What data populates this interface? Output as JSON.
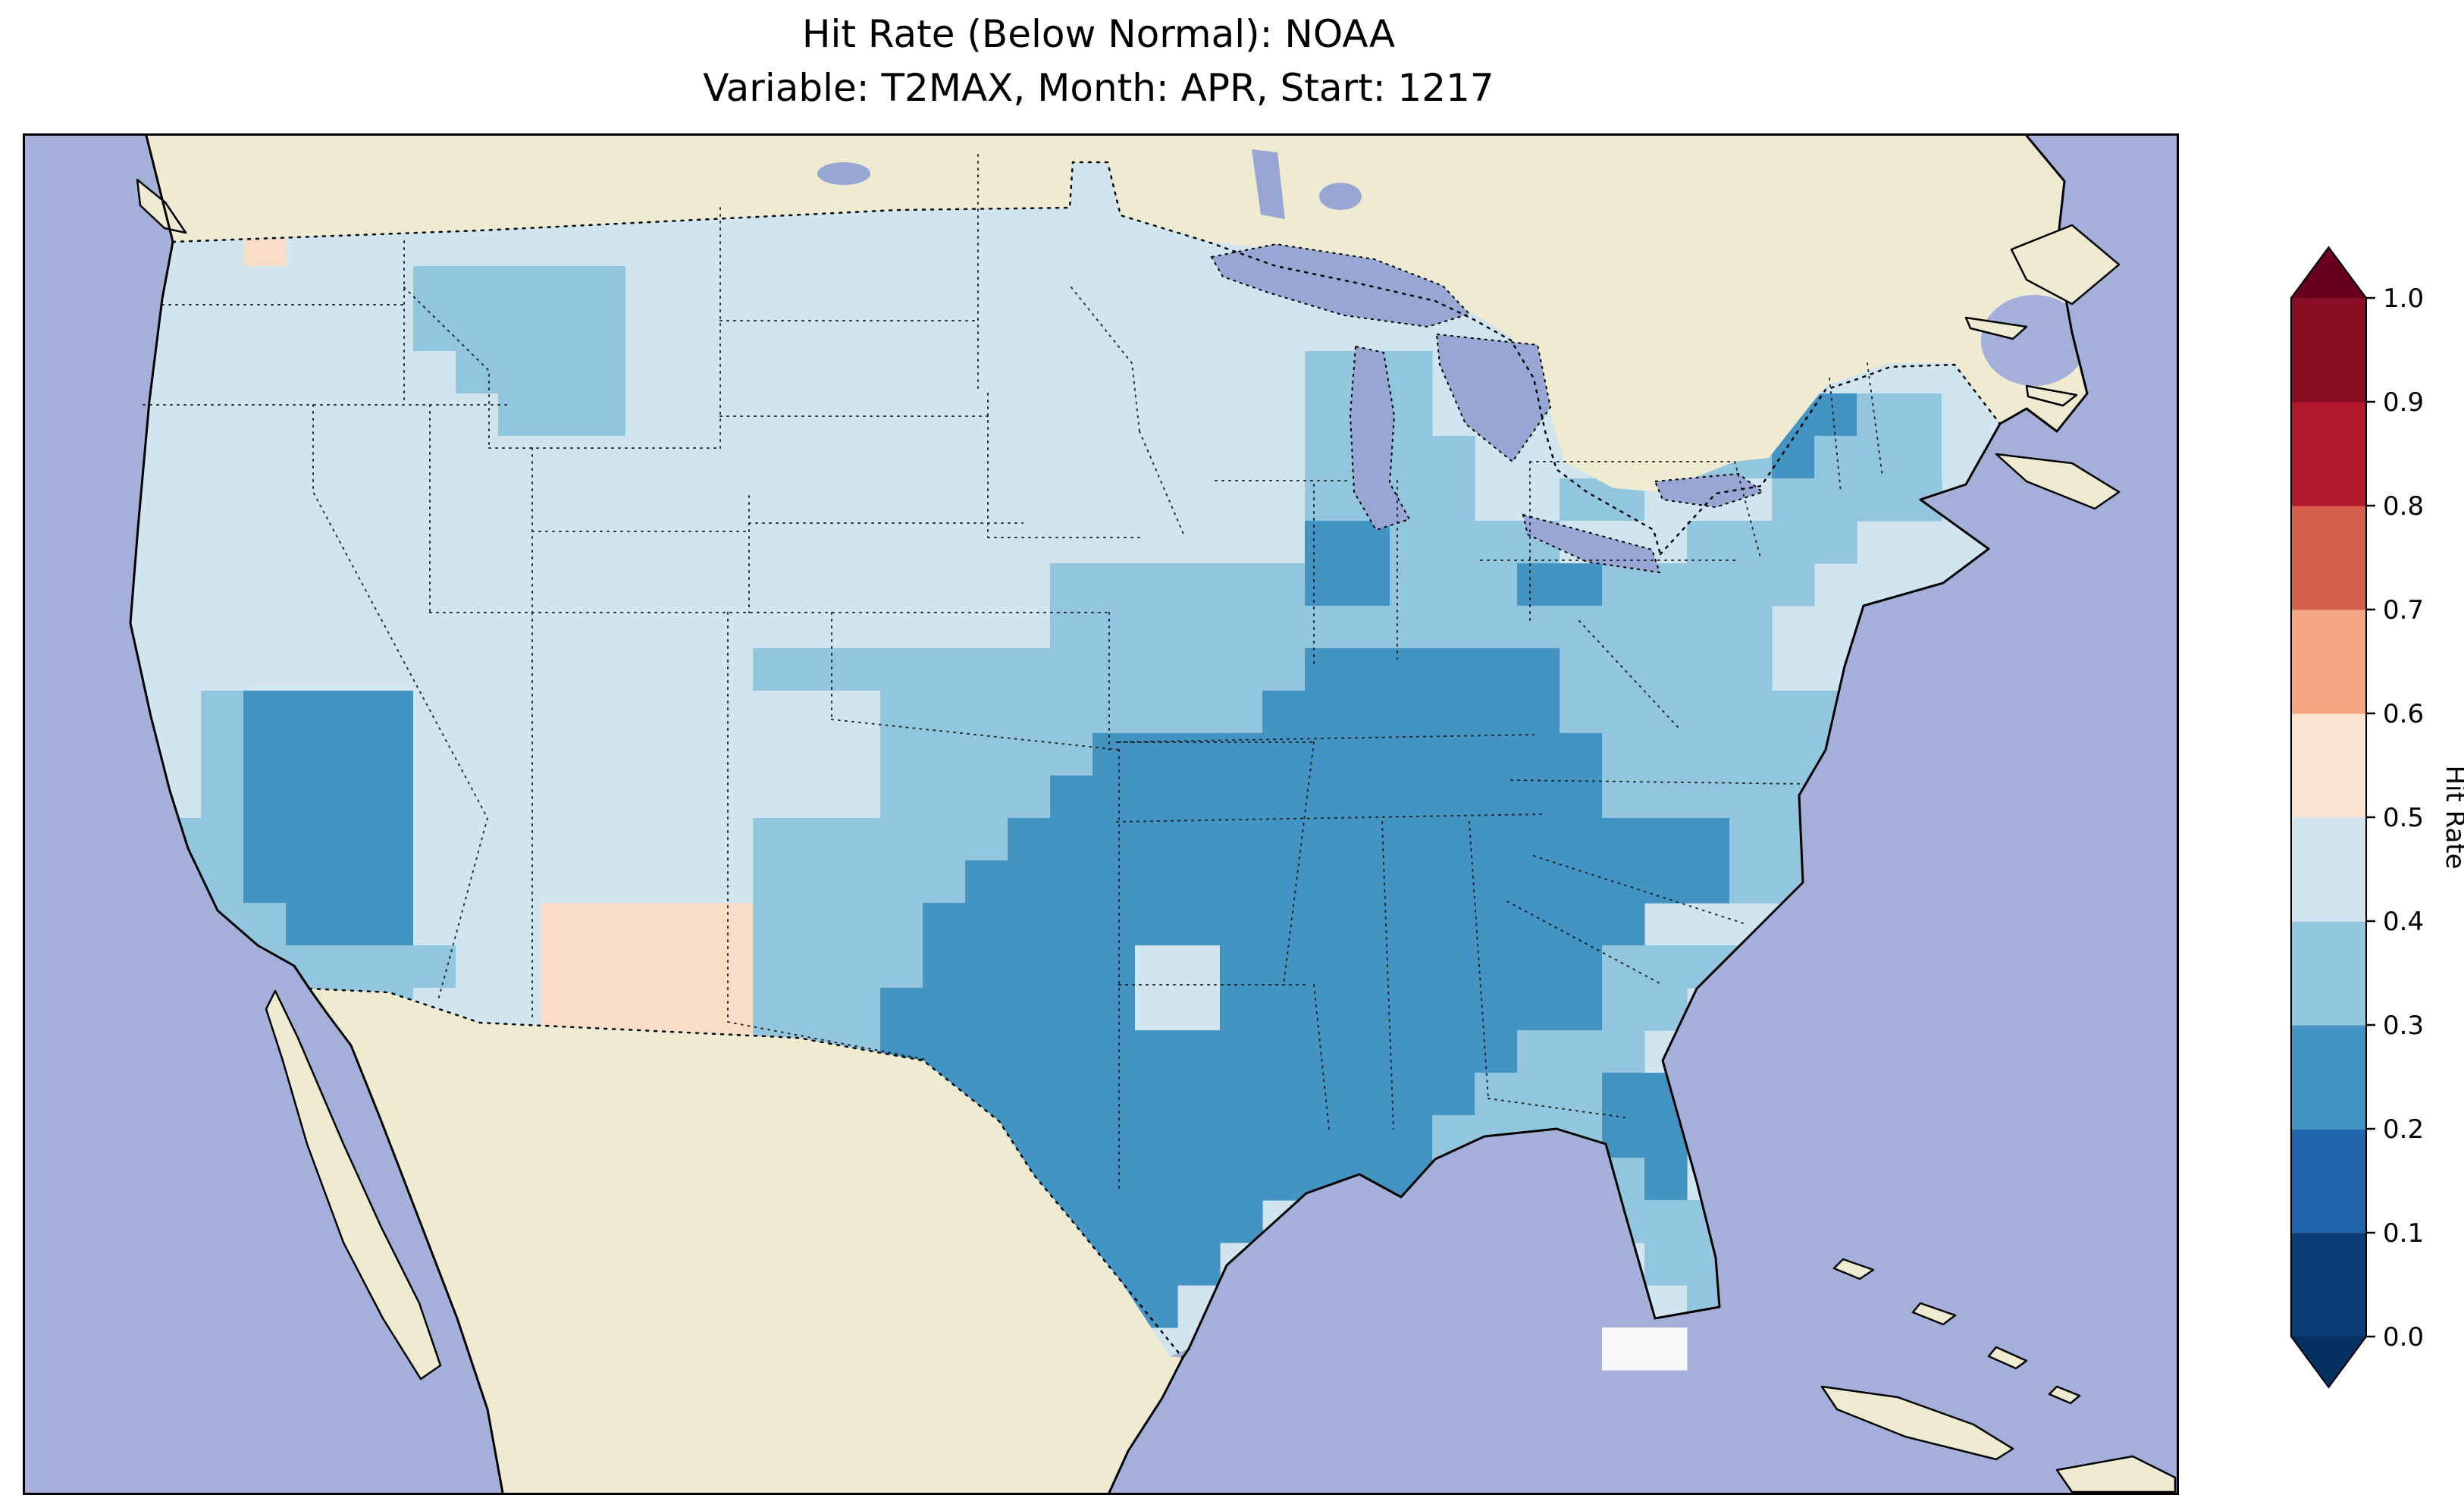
{
  "title": {
    "line1": "Hit Rate (Below Normal): NOAA",
    "line2": "Variable: T2MAX, Month: APR, Start: 1217"
  },
  "colorbar": {
    "label": "Hit Rate",
    "ticks": [
      "1.0",
      "0.9",
      "0.8",
      "0.7",
      "0.6",
      "0.5",
      "0.4",
      "0.3",
      "0.2",
      "0.1",
      "0.0"
    ],
    "band_colors_bottom_to_top": [
      "#0b3d74",
      "#2166ac",
      "#4393c3",
      "#92c5de",
      "#d1e5f0",
      "#fbe3d4",
      "#f4a582",
      "#d6604d",
      "#b2182b",
      "#8a0f24"
    ],
    "under_arrow_color": "#053061",
    "over_arrow_color": "#67001f"
  },
  "map": {
    "colors": {
      "ocean": "#a5b0da",
      "land": "#efebd2",
      "lake": "#98a6d4",
      "us_base": "#d1e5f0"
    },
    "palette": {
      "2": "#4393c3",
      "3": "#92c5de",
      "4": "#d1e5f0",
      "5": "#f9ddc9",
      "w": "#f7f7f7"
    }
  },
  "chart_data": {
    "type": "heatmap",
    "title": "Hit Rate (Below Normal): NOAA",
    "subtitle": "Variable: T2MAX, Month: APR, Start: 1217",
    "region": "Contiguous United States",
    "colorbar": {
      "label": "Hit Rate",
      "range": [
        0.0,
        1.0
      ],
      "tick_step": 0.1,
      "orientation": "vertical",
      "extend": "both"
    },
    "value_bands": {
      "2": "0.2-0.3",
      "3": "0.3-0.4",
      "4": "0.4-0.5",
      "5": "0.5-0.6",
      "w": "~0.5"
    },
    "grid": {
      "cols": 45,
      "rows": 28,
      "legend": "each character is one grid cell; digit = hit-rate band, '.' = no data / outside USA",
      "cell_values": [
        "4444444444444444444444444444.................",
        "4445444444444444444444444444.................",
        "4444444333334444444444444444.................",
        "4444444333334444444444444444............44444",
        "4444444433334444444444444444333......33344444",
        "4444444443334444444444444444333.....333223344",
        "44444444444444444444444444443333...3333233344",
        "44444444444444444444444444443333..334443333..",
        "44444444444444444444444444442233334443333....",
        "4444444444444444444444333333223332233333.....",
        "444444444444444444444433333333333333333......",
        "444444444444444333333333333322222233333......",
        "44322224444444444433333333322222223333333.....",
        "443222244444444444333332222222222223333333....",
        "44322224444444444433332222222222222333333.....",
        "33322224444444433333322222222222222222333......",
        "3332222444444443333322222222222222222233......",
        "333322244455555333322222222222222222.........",
        "...333334455555333322222442222222223333........",
        "....333444555553332222224422222222233.........",
        ".......44455555333222222222222222333.........",
        ".......44445553333222222222222223332223.......",
        "..............33333222222222222333322 3.......",
        "...............3333322222222222...332 3.......",
        ".....................222222........333.......",
        "......................2222..........33.......",
        ".......................22............3.......",
        "...................................ww........"
      ]
    }
  }
}
